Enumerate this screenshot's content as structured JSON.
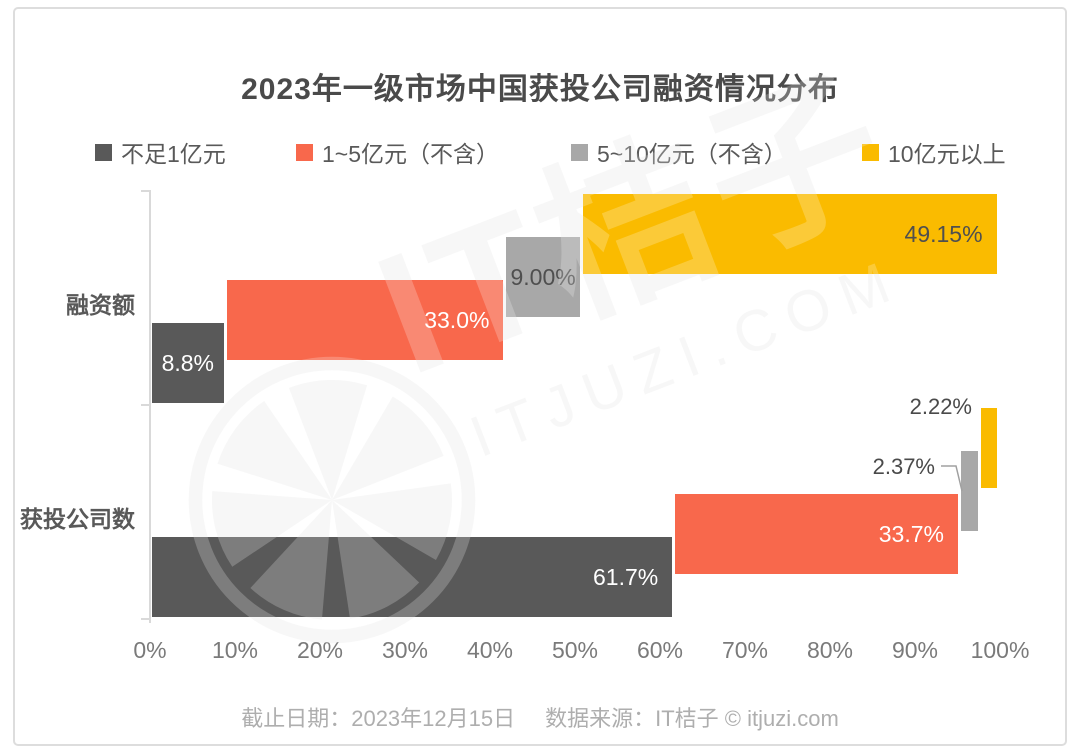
{
  "watermark": {
    "brand": "IT桔子",
    "domain": "ITJUZI.COM"
  },
  "footer": {
    "date_note": "截止日期：2023年12月15日",
    "source_note": "数据来源：IT桔子 © itjuzi.com"
  },
  "chart_data": {
    "type": "bar",
    "orientation": "horizontal-stacked-staggered",
    "title": "2023年一级市场中国获投公司融资情况分布",
    "legend_position": "top",
    "grid": false,
    "categories": [
      "融资额",
      "获投公司数"
    ],
    "series": [
      {
        "name": "不足1亿元",
        "color": "#595959",
        "label_color": "#ffffff",
        "values": [
          8.8,
          61.7
        ],
        "labels": [
          "8.8%",
          "61.7%"
        ]
      },
      {
        "name": "1~5亿元（不含）",
        "color": "#f8684c",
        "label_color": "#ffffff",
        "values": [
          33.0,
          33.7
        ],
        "labels": [
          "33.0%",
          "33.7%"
        ]
      },
      {
        "name": "5~10亿元（不含）",
        "color": "#a8a8a8",
        "label_color": "#4f4f4f",
        "values": [
          9.0,
          2.37
        ],
        "labels": [
          "9.00%",
          "2.37%"
        ]
      },
      {
        "name": "10亿元以上",
        "color": "#fabb00",
        "label_color": "#4f4f4f",
        "values": [
          49.15,
          2.22
        ],
        "labels": [
          "49.15%",
          "2.22%"
        ]
      }
    ],
    "x_axis": {
      "min": 0,
      "max": 100,
      "tick_labels": [
        "0%",
        "10%",
        "20%",
        "30%",
        "40%",
        "50%",
        "60%",
        "70%",
        "80%",
        "90%",
        "100%"
      ]
    }
  }
}
